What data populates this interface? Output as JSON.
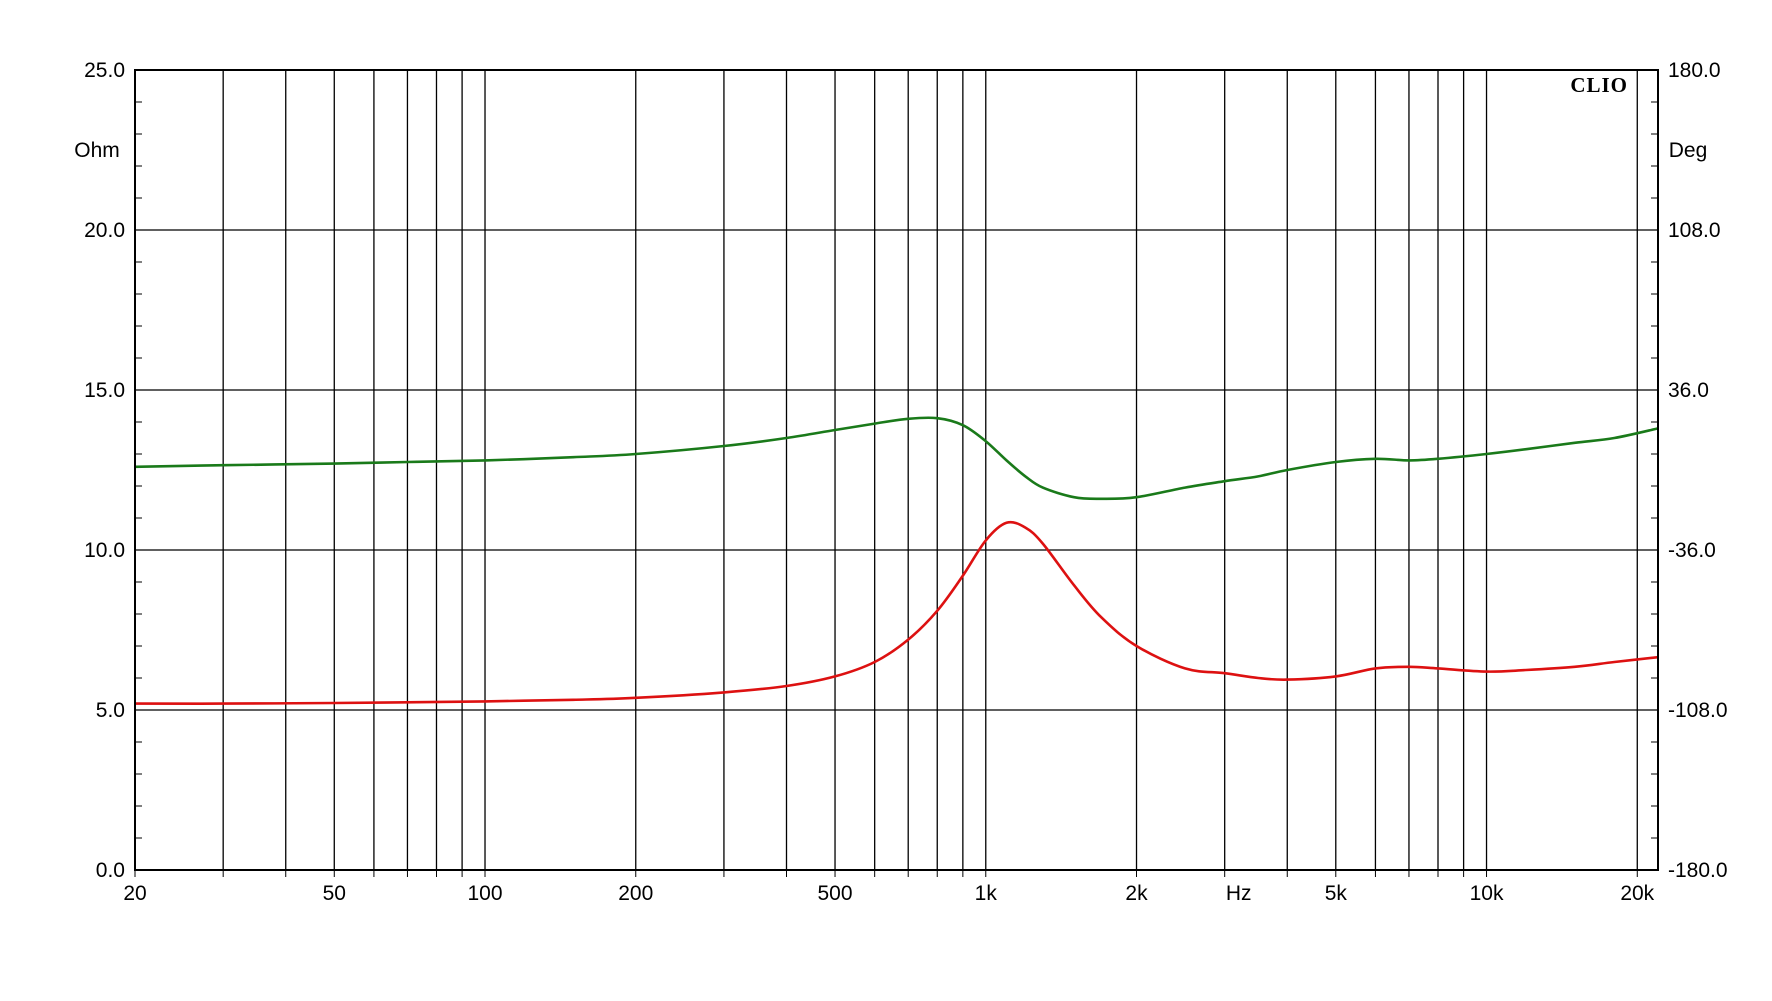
{
  "chart_data": {
    "type": "line",
    "brand": "CLIO",
    "x_unit_label": "Hz",
    "x_scale": "log",
    "xlim": [
      20,
      22000
    ],
    "x_ticks": [
      {
        "value": 20,
        "label": "20"
      },
      {
        "value": 50,
        "label": "50"
      },
      {
        "value": 100,
        "label": "100"
      },
      {
        "value": 200,
        "label": "200"
      },
      {
        "value": 500,
        "label": "500"
      },
      {
        "value": 1000,
        "label": "1k"
      },
      {
        "value": 2000,
        "label": "2k"
      },
      {
        "value": 5000,
        "label": "5k"
      },
      {
        "value": 10000,
        "label": "10k"
      },
      {
        "value": 20000,
        "label": "20k"
      }
    ],
    "y_left": {
      "unit_label": "Ohm",
      "ylim": [
        0,
        25
      ],
      "ticks": [
        {
          "value": 0,
          "label": "0.0"
        },
        {
          "value": 5,
          "label": "5.0"
        },
        {
          "value": 10,
          "label": "10.0"
        },
        {
          "value": 15,
          "label": "15.0"
        },
        {
          "value": 20,
          "label": "20.0"
        },
        {
          "value": 25,
          "label": "25.0"
        }
      ]
    },
    "y_right": {
      "unit_label": "Deg",
      "ylim": [
        -180,
        180
      ],
      "ticks": [
        {
          "value": -180,
          "label": "-180.0"
        },
        {
          "value": -108,
          "label": "-108.0"
        },
        {
          "value": -36,
          "label": "-36.0"
        },
        {
          "value": 36,
          "label": "36.0"
        },
        {
          "value": 108,
          "label": "108.0"
        },
        {
          "value": 180,
          "label": "180.0"
        }
      ]
    },
    "grid": true,
    "series": [
      {
        "axis": "left",
        "color": "#dd1111",
        "points": [
          [
            20,
            5.2
          ],
          [
            30,
            5.2
          ],
          [
            50,
            5.22
          ],
          [
            70,
            5.24
          ],
          [
            100,
            5.27
          ],
          [
            150,
            5.32
          ],
          [
            200,
            5.38
          ],
          [
            300,
            5.55
          ],
          [
            400,
            5.75
          ],
          [
            500,
            6.05
          ],
          [
            600,
            6.5
          ],
          [
            700,
            7.2
          ],
          [
            800,
            8.1
          ],
          [
            900,
            9.2
          ],
          [
            1000,
            10.3
          ],
          [
            1100,
            10.85
          ],
          [
            1200,
            10.7
          ],
          [
            1300,
            10.2
          ],
          [
            1500,
            8.9
          ],
          [
            1700,
            7.9
          ],
          [
            2000,
            7.0
          ],
          [
            2500,
            6.3
          ],
          [
            3000,
            6.15
          ],
          [
            3500,
            6.0
          ],
          [
            4000,
            5.95
          ],
          [
            5000,
            6.05
          ],
          [
            6000,
            6.3
          ],
          [
            7000,
            6.35
          ],
          [
            8000,
            6.3
          ],
          [
            10000,
            6.2
          ],
          [
            12000,
            6.25
          ],
          [
            15000,
            6.35
          ],
          [
            18000,
            6.5
          ],
          [
            22000,
            6.65
          ]
        ]
      },
      {
        "axis": "left",
        "color": "#1a7a1a",
        "points": [
          [
            20,
            12.6
          ],
          [
            30,
            12.65
          ],
          [
            50,
            12.7
          ],
          [
            70,
            12.75
          ],
          [
            100,
            12.8
          ],
          [
            150,
            12.9
          ],
          [
            200,
            13.0
          ],
          [
            300,
            13.25
          ],
          [
            400,
            13.5
          ],
          [
            500,
            13.75
          ],
          [
            600,
            13.95
          ],
          [
            700,
            14.1
          ],
          [
            800,
            14.12
          ],
          [
            900,
            13.9
          ],
          [
            1000,
            13.4
          ],
          [
            1100,
            12.8
          ],
          [
            1200,
            12.3
          ],
          [
            1300,
            11.95
          ],
          [
            1500,
            11.65
          ],
          [
            1700,
            11.6
          ],
          [
            2000,
            11.65
          ],
          [
            2500,
            11.95
          ],
          [
            3000,
            12.15
          ],
          [
            3500,
            12.3
          ],
          [
            4000,
            12.5
          ],
          [
            5000,
            12.75
          ],
          [
            6000,
            12.85
          ],
          [
            7000,
            12.8
          ],
          [
            8000,
            12.85
          ],
          [
            10000,
            13.0
          ],
          [
            12000,
            13.15
          ],
          [
            15000,
            13.35
          ],
          [
            18000,
            13.5
          ],
          [
            22000,
            13.8
          ]
        ]
      }
    ]
  }
}
